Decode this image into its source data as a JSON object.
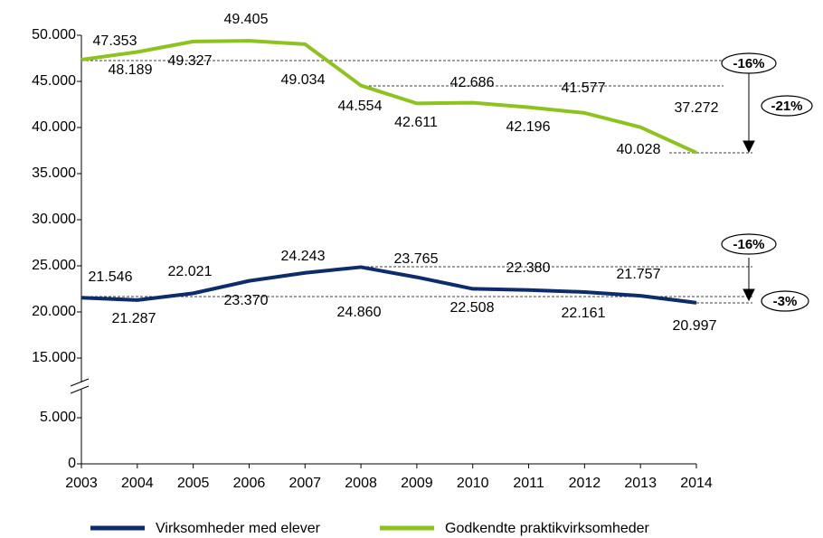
{
  "chart_data": {
    "type": "line",
    "categories": [
      "2003",
      "2004",
      "2005",
      "2006",
      "2007",
      "2008",
      "2009",
      "2010",
      "2011",
      "2012",
      "2013",
      "2014"
    ],
    "series": [
      {
        "name": "Virksomheder med elever",
        "color": "#0d2c6c",
        "values": [
          21546,
          21287,
          22021,
          23370,
          24243,
          24860,
          23765,
          22508,
          22380,
          22161,
          21757,
          20997
        ],
        "value_labels": [
          "21.546",
          "21.287",
          "22.021",
          "23.370",
          "24.243",
          "24.860",
          "23.765",
          "22.508",
          "22.380",
          "22.161",
          "21.757",
          "20.997"
        ]
      },
      {
        "name": "Godkendte praktikvirksomheder",
        "color": "#8dc21f",
        "values": [
          47353,
          48189,
          49327,
          49405,
          49034,
          44554,
          42611,
          42686,
          42196,
          41577,
          40028,
          37272
        ],
        "value_labels": [
          "47.353",
          "48.189",
          "49.327",
          "49.405",
          "49.034",
          "44.554",
          "42.611",
          "42.686",
          "42.196",
          "41.577",
          "40.028",
          "37.272"
        ]
      }
    ],
    "ylim": [
      0,
      50000
    ],
    "y_break": [
      5000,
      15000
    ],
    "yticks": [
      {
        "value": 0,
        "label": "0"
      },
      {
        "value": 5000,
        "label": "5.000"
      },
      {
        "value": 15000,
        "label": "15.000"
      },
      {
        "value": 20000,
        "label": "20.000"
      },
      {
        "value": 25000,
        "label": "25.000"
      },
      {
        "value": 30000,
        "label": "30.000"
      },
      {
        "value": 35000,
        "label": "35.000"
      },
      {
        "value": 40000,
        "label": "40.000"
      },
      {
        "value": 45000,
        "label": "45.000"
      },
      {
        "value": 50000,
        "label": "50.000"
      }
    ],
    "annotations": [
      "-16%",
      "-21%",
      "-16%",
      "-3%"
    ],
    "legend": "bottom"
  }
}
